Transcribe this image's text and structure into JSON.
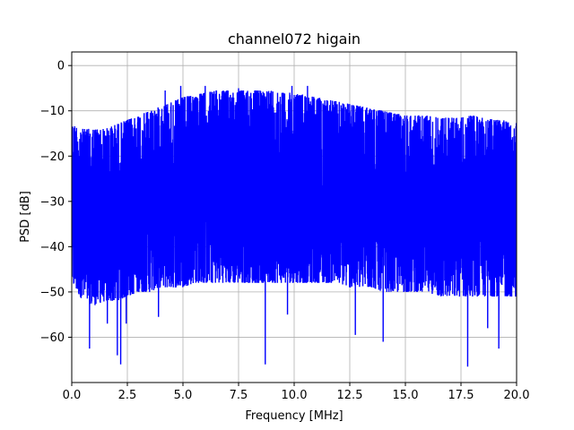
{
  "chart_data": {
    "type": "line",
    "title": "channel072 higain",
    "xlabel": "Frequency [MHz]",
    "ylabel": "PSD [dB]",
    "xlim": [
      0,
      20
    ],
    "ylim": [
      -70,
      3
    ],
    "xticks": [
      0.0,
      2.5,
      5.0,
      7.5,
      10.0,
      12.5,
      15.0,
      17.5,
      20.0
    ],
    "xtick_labels": [
      "0.0",
      "2.5",
      "5.0",
      "7.5",
      "10.0",
      "12.5",
      "15.0",
      "17.5",
      "20.0"
    ],
    "yticks": [
      0,
      -10,
      -20,
      -30,
      -40,
      -50,
      -60
    ],
    "ytick_labels": [
      "0",
      "−10",
      "−20",
      "−30",
      "−40",
      "−50",
      "−60"
    ],
    "grid": true,
    "series": [
      {
        "color": "#0000ff",
        "upper_envelope": {
          "x": [
            0,
            0.5,
            1.0,
            1.5,
            2.0,
            2.5,
            3.0,
            3.5,
            4.0,
            4.5,
            5.0,
            5.5,
            6.0,
            6.5,
            7.0,
            7.5,
            8.0,
            8.5,
            9.0,
            9.5,
            10.0,
            10.5,
            11.0,
            11.5,
            12.0,
            12.5,
            13.0,
            13.5,
            14.0,
            14.5,
            15.0,
            15.5,
            16.0,
            16.5,
            17.0,
            17.5,
            18.0,
            18.5,
            19.0,
            19.5,
            20.0
          ],
          "y": [
            -13,
            -14,
            -14,
            -14,
            -13,
            -12,
            -11,
            -10,
            -9,
            -8,
            -7,
            -6.5,
            -6,
            -5.5,
            -5.5,
            -5.5,
            -5.5,
            -5.5,
            -5.5,
            -6,
            -6,
            -6.5,
            -7,
            -7.5,
            -8,
            -8.5,
            -9,
            -9.5,
            -10,
            -10.5,
            -11,
            -11,
            -11,
            -11.5,
            -11.5,
            -11.5,
            -11,
            -11.5,
            -12,
            -12,
            -12
          ]
        },
        "lower_envelope": {
          "x": [
            0,
            0.5,
            1.0,
            1.5,
            2.0,
            2.5,
            3.0,
            3.5,
            4.0,
            4.5,
            5.0,
            5.5,
            6.0,
            6.5,
            7.0,
            7.5,
            8.0,
            8.5,
            9.0,
            9.5,
            10.0,
            10.5,
            11.0,
            11.5,
            12.0,
            12.5,
            13.0,
            13.5,
            14.0,
            14.5,
            15.0,
            15.5,
            16.0,
            16.5,
            17.0,
            17.5,
            18.0,
            18.5,
            19.0,
            19.5,
            20.0
          ],
          "y": [
            -48,
            -52,
            -53,
            -52,
            -52,
            -51,
            -50,
            -50,
            -49,
            -49,
            -49,
            -48,
            -48,
            -48,
            -48,
            -48,
            -48,
            -48,
            -48,
            -48,
            -48,
            -48,
            -48,
            -48,
            -48,
            -49,
            -49,
            -49,
            -50,
            -50,
            -50,
            -50,
            -50,
            -51,
            -51,
            -51,
            -51,
            -51,
            -51,
            -51,
            -51
          ]
        },
        "dips": [
          {
            "x": 0.8,
            "y": -62.5
          },
          {
            "x": 1.6,
            "y": -57
          },
          {
            "x": 2.05,
            "y": -64
          },
          {
            "x": 2.2,
            "y": -66
          },
          {
            "x": 2.45,
            "y": -57
          },
          {
            "x": 3.9,
            "y": -55.5
          },
          {
            "x": 8.7,
            "y": -66
          },
          {
            "x": 9.7,
            "y": -55
          },
          {
            "x": 12.75,
            "y": -59.5
          },
          {
            "x": 14.0,
            "y": -61
          },
          {
            "x": 17.8,
            "y": -66.5
          },
          {
            "x": 18.7,
            "y": -58
          },
          {
            "x": 19.2,
            "y": -62.5
          }
        ],
        "peaks": [
          {
            "x": 4.2,
            "y": -5.5
          },
          {
            "x": 4.9,
            "y": -4.5
          },
          {
            "x": 6.0,
            "y": -4.5
          },
          {
            "x": 7.5,
            "y": -5
          },
          {
            "x": 9.9,
            "y": -4.5
          },
          {
            "x": 10.6,
            "y": -4.5
          }
        ]
      }
    ]
  }
}
